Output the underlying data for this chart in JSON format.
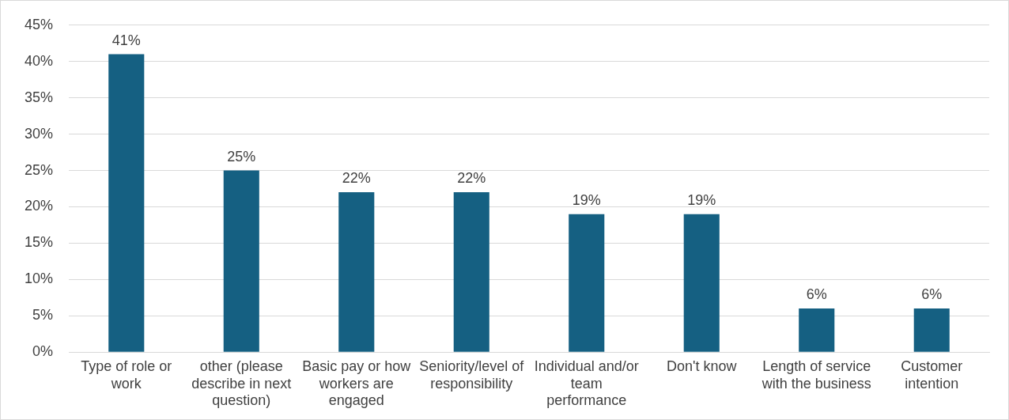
{
  "chart_data": {
    "type": "bar",
    "categories": [
      "Type of role or work",
      "other (please describe in next question)",
      "Basic pay or how workers are engaged",
      "Seniority/level of responsibility",
      "Individual and/or team performance",
      "Don't know",
      "Length of service with the business",
      "Customer intention"
    ],
    "values": [
      41,
      25,
      22,
      22,
      19,
      19,
      6,
      6
    ],
    "value_labels": [
      "41%",
      "25%",
      "22%",
      "22%",
      "19%",
      "19%",
      "6%",
      "6%"
    ],
    "color": "#156082",
    "ylim": [
      0,
      45
    ],
    "yticks": [
      {
        "value": 0,
        "label": "0%"
      },
      {
        "value": 5,
        "label": "5%"
      },
      {
        "value": 10,
        "label": "10%"
      },
      {
        "value": 15,
        "label": "15%"
      },
      {
        "value": 20,
        "label": "20%"
      },
      {
        "value": 25,
        "label": "25%"
      },
      {
        "value": 30,
        "label": "30%"
      },
      {
        "value": 35,
        "label": "35%"
      },
      {
        "value": 40,
        "label": "40%"
      },
      {
        "value": 45,
        "label": "45%"
      }
    ],
    "grid": "y",
    "legend": false
  }
}
